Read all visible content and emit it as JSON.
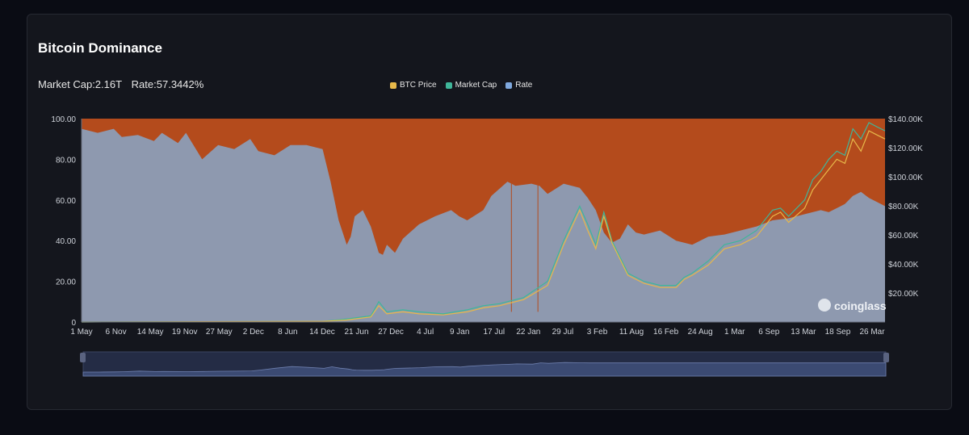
{
  "header": {
    "title": "Bitcoin Dominance",
    "market_cap_label": "Market Cap:2.16T",
    "rate_label": "Rate:57.3442%"
  },
  "watermark": "coinglass",
  "colors": {
    "btc_price": "#e7b84a",
    "market_cap": "#3fb69a",
    "rate": "#8e99af",
    "rest": "#b44b1c",
    "background": "#14161d"
  },
  "chart_data": {
    "type": "area",
    "legend": [
      "BTC Price",
      "Market Cap",
      "Rate"
    ],
    "legend_position": "top-center",
    "x_ticks": [
      "1 May",
      "6 Nov",
      "14 May",
      "19 Nov",
      "27 May",
      "2 Dec",
      "8 Jun",
      "14 Dec",
      "21 Jun",
      "27 Dec",
      "4 Jul",
      "9 Jan",
      "17 Jul",
      "22 Jan",
      "29 Jul",
      "3 Feb",
      "11 Aug",
      "16 Feb",
      "24 Aug",
      "1 Mar",
      "6 Sep",
      "13 Mar",
      "18 Sep",
      "26 Mar"
    ],
    "y_left_ticks": [
      "0",
      "20.00",
      "40.00",
      "60.00",
      "80.00",
      "100.00"
    ],
    "y_left_range": [
      0,
      100
    ],
    "y_right_ticks": [
      "$20.00K",
      "$40.00K",
      "$60.00K",
      "$80.00K",
      "$100.00K",
      "$120.00K",
      "$140.00K"
    ],
    "y_right_range": [
      0,
      140000
    ],
    "rate_series": {
      "name": "Rate",
      "x": [
        0,
        0.02,
        0.04,
        0.05,
        0.07,
        0.09,
        0.1,
        0.12,
        0.13,
        0.15,
        0.17,
        0.19,
        0.21,
        0.22,
        0.24,
        0.26,
        0.28,
        0.3,
        0.31,
        0.32,
        0.33,
        0.335,
        0.34,
        0.35,
        0.36,
        0.37,
        0.375,
        0.38,
        0.39,
        0.4,
        0.42,
        0.44,
        0.46,
        0.47,
        0.48,
        0.5,
        0.51,
        0.53,
        0.54,
        0.56,
        0.57,
        0.58,
        0.6,
        0.62,
        0.63,
        0.64,
        0.65,
        0.66,
        0.67,
        0.68,
        0.69,
        0.7,
        0.72,
        0.74,
        0.75,
        0.76,
        0.78,
        0.8,
        0.82,
        0.84,
        0.86,
        0.88,
        0.9,
        0.92,
        0.93,
        0.94,
        0.95,
        0.96,
        0.97,
        0.98,
        0.99,
        1
      ],
      "values": [
        95,
        93,
        95,
        91,
        92,
        89,
        93,
        88,
        93,
        80,
        87,
        85,
        90,
        84,
        82,
        87,
        87,
        85,
        69,
        50,
        38,
        42,
        52,
        55,
        47,
        34,
        33,
        38,
        34,
        41,
        48,
        52,
        55,
        52,
        50,
        55,
        62,
        69,
        67,
        68,
        67,
        63,
        68,
        66,
        61,
        55,
        44,
        39,
        41,
        48,
        44,
        43,
        45,
        40,
        39,
        38,
        42,
        43,
        45,
        47,
        50,
        51,
        53,
        55,
        54,
        56,
        58,
        62,
        64,
        61,
        59,
        57
      ]
    },
    "market_cap_series": {
      "name": "Market Cap",
      "x": [
        0,
        0.3,
        0.33,
        0.36,
        0.37,
        0.38,
        0.4,
        0.42,
        0.45,
        0.48,
        0.5,
        0.52,
        0.55,
        0.58,
        0.6,
        0.62,
        0.63,
        0.64,
        0.65,
        0.66,
        0.67,
        0.68,
        0.7,
        0.72,
        0.74,
        0.75,
        0.76,
        0.78,
        0.8,
        0.82,
        0.84,
        0.86,
        0.87,
        0.88,
        0.9,
        0.91,
        0.92,
        0.93,
        0.94,
        0.95,
        0.96,
        0.97,
        0.98,
        0.99,
        1
      ],
      "values": [
        0,
        0.3,
        1.5,
        3,
        10,
        5,
        6,
        5,
        4,
        6,
        8,
        9,
        12,
        20,
        40,
        57,
        48,
        38,
        54,
        40,
        32,
        24,
        20,
        18,
        18,
        22,
        24,
        30,
        38,
        40,
        45,
        55,
        56,
        52,
        60,
        70,
        74,
        80,
        84,
        82,
        95,
        90,
        98,
        96,
        94
      ]
    },
    "btc_price_series": {
      "name": "BTC Price",
      "x": [
        0,
        0.3,
        0.33,
        0.36,
        0.37,
        0.38,
        0.4,
        0.42,
        0.45,
        0.48,
        0.5,
        0.52,
        0.55,
        0.58,
        0.6,
        0.62,
        0.63,
        0.64,
        0.65,
        0.66,
        0.67,
        0.68,
        0.7,
        0.72,
        0.74,
        0.75,
        0.76,
        0.78,
        0.8,
        0.82,
        0.84,
        0.86,
        0.87,
        0.88,
        0.9,
        0.91,
        0.92,
        0.93,
        0.94,
        0.95,
        0.96,
        0.97,
        0.98,
        0.99,
        1
      ],
      "values": [
        0,
        0.3,
        1,
        2.5,
        8,
        4,
        5,
        4,
        3.5,
        5,
        7,
        8,
        11,
        18,
        38,
        55,
        45,
        36,
        52,
        39,
        31,
        23,
        19,
        17,
        17,
        21,
        23,
        28,
        36,
        38,
        42,
        52,
        54,
        49,
        56,
        65,
        70,
        75,
        80,
        78,
        90,
        84,
        94,
        92,
        90
      ]
    }
  }
}
